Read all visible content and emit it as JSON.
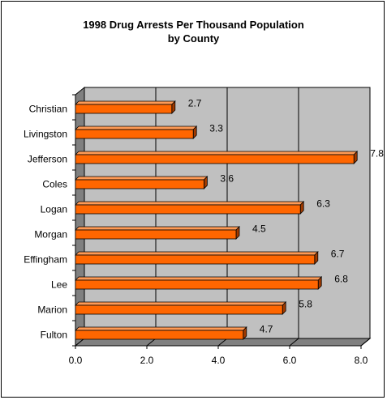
{
  "chart_data": {
    "type": "bar",
    "orientation": "horizontal",
    "title_line1": "1998 Drug Arrests Per Thousand Population",
    "title_line2": "by County",
    "categories": [
      "Christian",
      "Livingston",
      "Jefferson",
      "Coles",
      "Logan",
      "Morgan",
      "Effingham",
      "Lee",
      "Marion",
      "Fulton"
    ],
    "values": [
      2.7,
      3.3,
      7.8,
      3.6,
      6.3,
      4.5,
      6.7,
      6.8,
      5.8,
      4.7
    ],
    "value_labels": [
      "2.7",
      "3.3",
      "7.8",
      "3.6",
      "6.3",
      "4.5",
      "6.7",
      "6.8",
      "5.8",
      "4.7"
    ],
    "xlim": [
      0,
      8
    ],
    "xticks": [
      "0.0",
      "2.0",
      "4.0",
      "6.0",
      "8.0"
    ],
    "xtick_values": [
      0,
      2,
      4,
      6,
      8
    ],
    "xlabel": "",
    "ylabel": "",
    "grid": true,
    "legend": "none",
    "bar_color": "#ff6600",
    "bar_top_color": "#ff9a55",
    "bar_side_color": "#a03a00",
    "plot_wall_color": "#c0c0c0",
    "plot_floor_color": "#808080"
  }
}
